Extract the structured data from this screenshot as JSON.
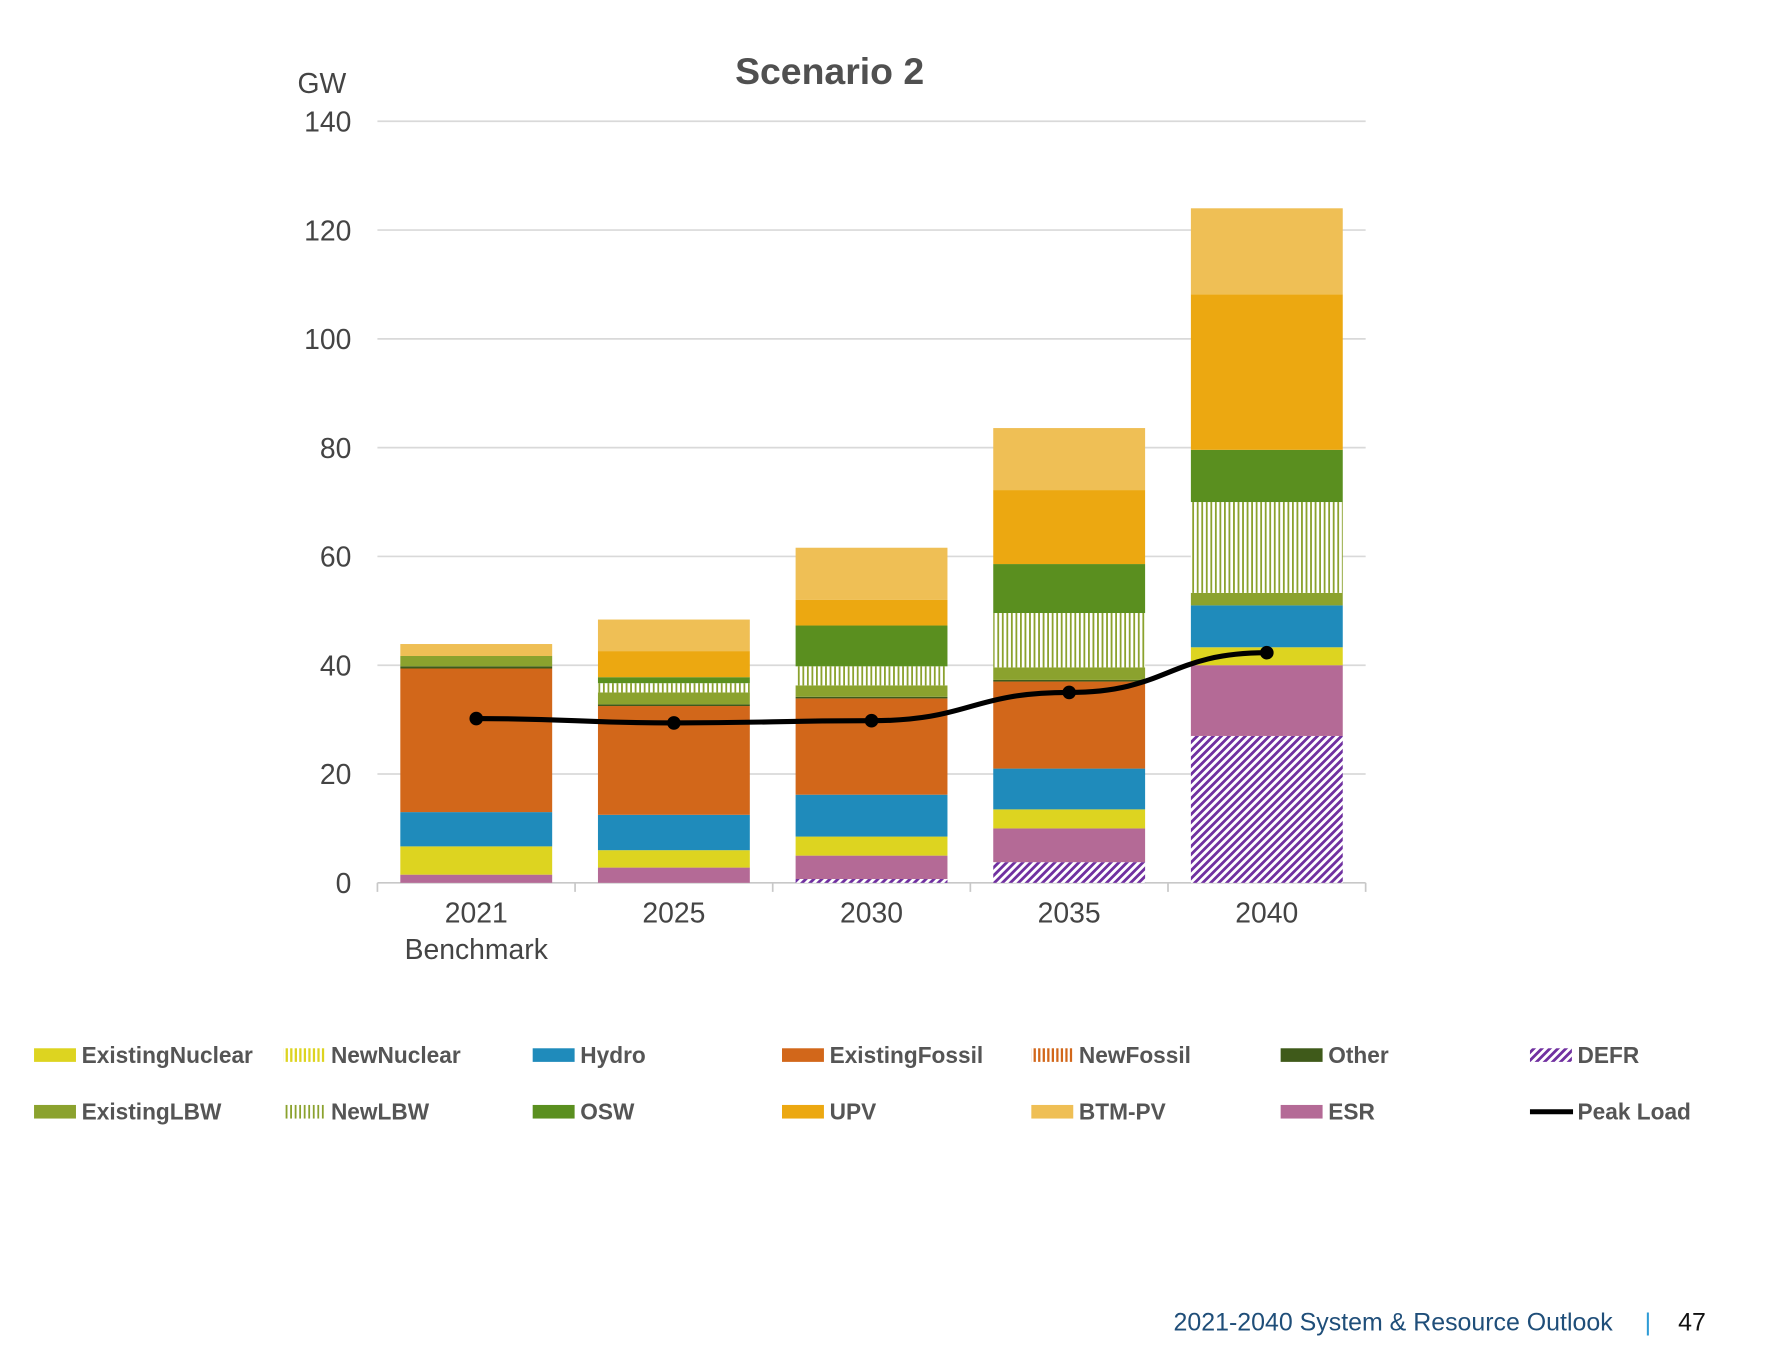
{
  "chart_data": {
    "type": "bar",
    "stacked": true,
    "title": "Scenario 2",
    "ylabel": "GW",
    "xlabel": "",
    "ylim": [
      0,
      140
    ],
    "yticks": [
      "0",
      "20",
      "40",
      "60",
      "80",
      "100",
      "120",
      "140"
    ],
    "grid": true,
    "legend_position": "bottom",
    "categories": [
      "2021 Benchmark",
      "2025",
      "2030",
      "2035",
      "2040"
    ],
    "category_lines": [
      [
        "2021",
        "Benchmark"
      ],
      [
        "2025"
      ],
      [
        "2030"
      ],
      [
        "2035"
      ],
      [
        "2040"
      ]
    ],
    "series": [
      {
        "name": "DEFR",
        "color": "#7030a0",
        "pattern": "diag",
        "values": [
          0,
          0,
          0.7,
          3.8,
          27
        ]
      },
      {
        "name": "ESR",
        "color": "#b46a96",
        "values": [
          1.5,
          2.8,
          4.3,
          6.2,
          13
        ]
      },
      {
        "name": "ExistingNuclear",
        "color": "#ddd420",
        "values": [
          5.2,
          3.2,
          3.5,
          3.5,
          3.3
        ]
      },
      {
        "name": "NewNuclear",
        "color": "#ddd420",
        "pattern": "vstripe",
        "values": [
          0,
          0,
          0,
          0,
          0
        ]
      },
      {
        "name": "Hydro",
        "color": "#1f8bbb",
        "values": [
          6.3,
          6.5,
          7.7,
          7.5,
          7.7
        ]
      },
      {
        "name": "ExistingFossil",
        "color": "#d2671a",
        "values": [
          26.4,
          20,
          17.7,
          16,
          0
        ]
      },
      {
        "name": "NewFossil",
        "color": "#d2671a",
        "pattern": "vstripe",
        "values": [
          0,
          0,
          0,
          0,
          0
        ]
      },
      {
        "name": "Other",
        "color": "#3f5a1a",
        "values": [
          0.4,
          0.3,
          0.3,
          0.3,
          0
        ]
      },
      {
        "name": "ExistingLBW",
        "color": "#8ba22e",
        "values": [
          1.9,
          2.2,
          2.1,
          2.3,
          2.3
        ]
      },
      {
        "name": "NewLBW",
        "color": "#8ba22e",
        "pattern": "vstripe",
        "values": [
          0,
          1.7,
          3.5,
          10,
          16.7
        ]
      },
      {
        "name": "OSW",
        "color": "#5a8f1f",
        "values": [
          0,
          1.1,
          7.5,
          9,
          9.6
        ]
      },
      {
        "name": "UPV",
        "color": "#eca811",
        "values": [
          0,
          4.8,
          4.7,
          13.6,
          28.6
        ]
      },
      {
        "name": "BTM-PV",
        "color": "#efbf55",
        "values": [
          2.2,
          5.8,
          9.6,
          11.4,
          15.8
        ]
      }
    ],
    "line_series": {
      "name": "Peak Load",
      "color": "#000000",
      "values": [
        30.2,
        29.4,
        29.8,
        35.0,
        42.3
      ]
    },
    "legend_order": [
      "ExistingNuclear",
      "NewNuclear",
      "Hydro",
      "ExistingFossil",
      "NewFossil",
      "Other",
      "DEFR",
      "ExistingLBW",
      "NewLBW",
      "OSW",
      "UPV",
      "BTM-PV",
      "ESR",
      "Peak Load"
    ]
  },
  "footer": {
    "title": "2021-2040 System & Resource Outlook",
    "separator": "|",
    "page": "47"
  }
}
